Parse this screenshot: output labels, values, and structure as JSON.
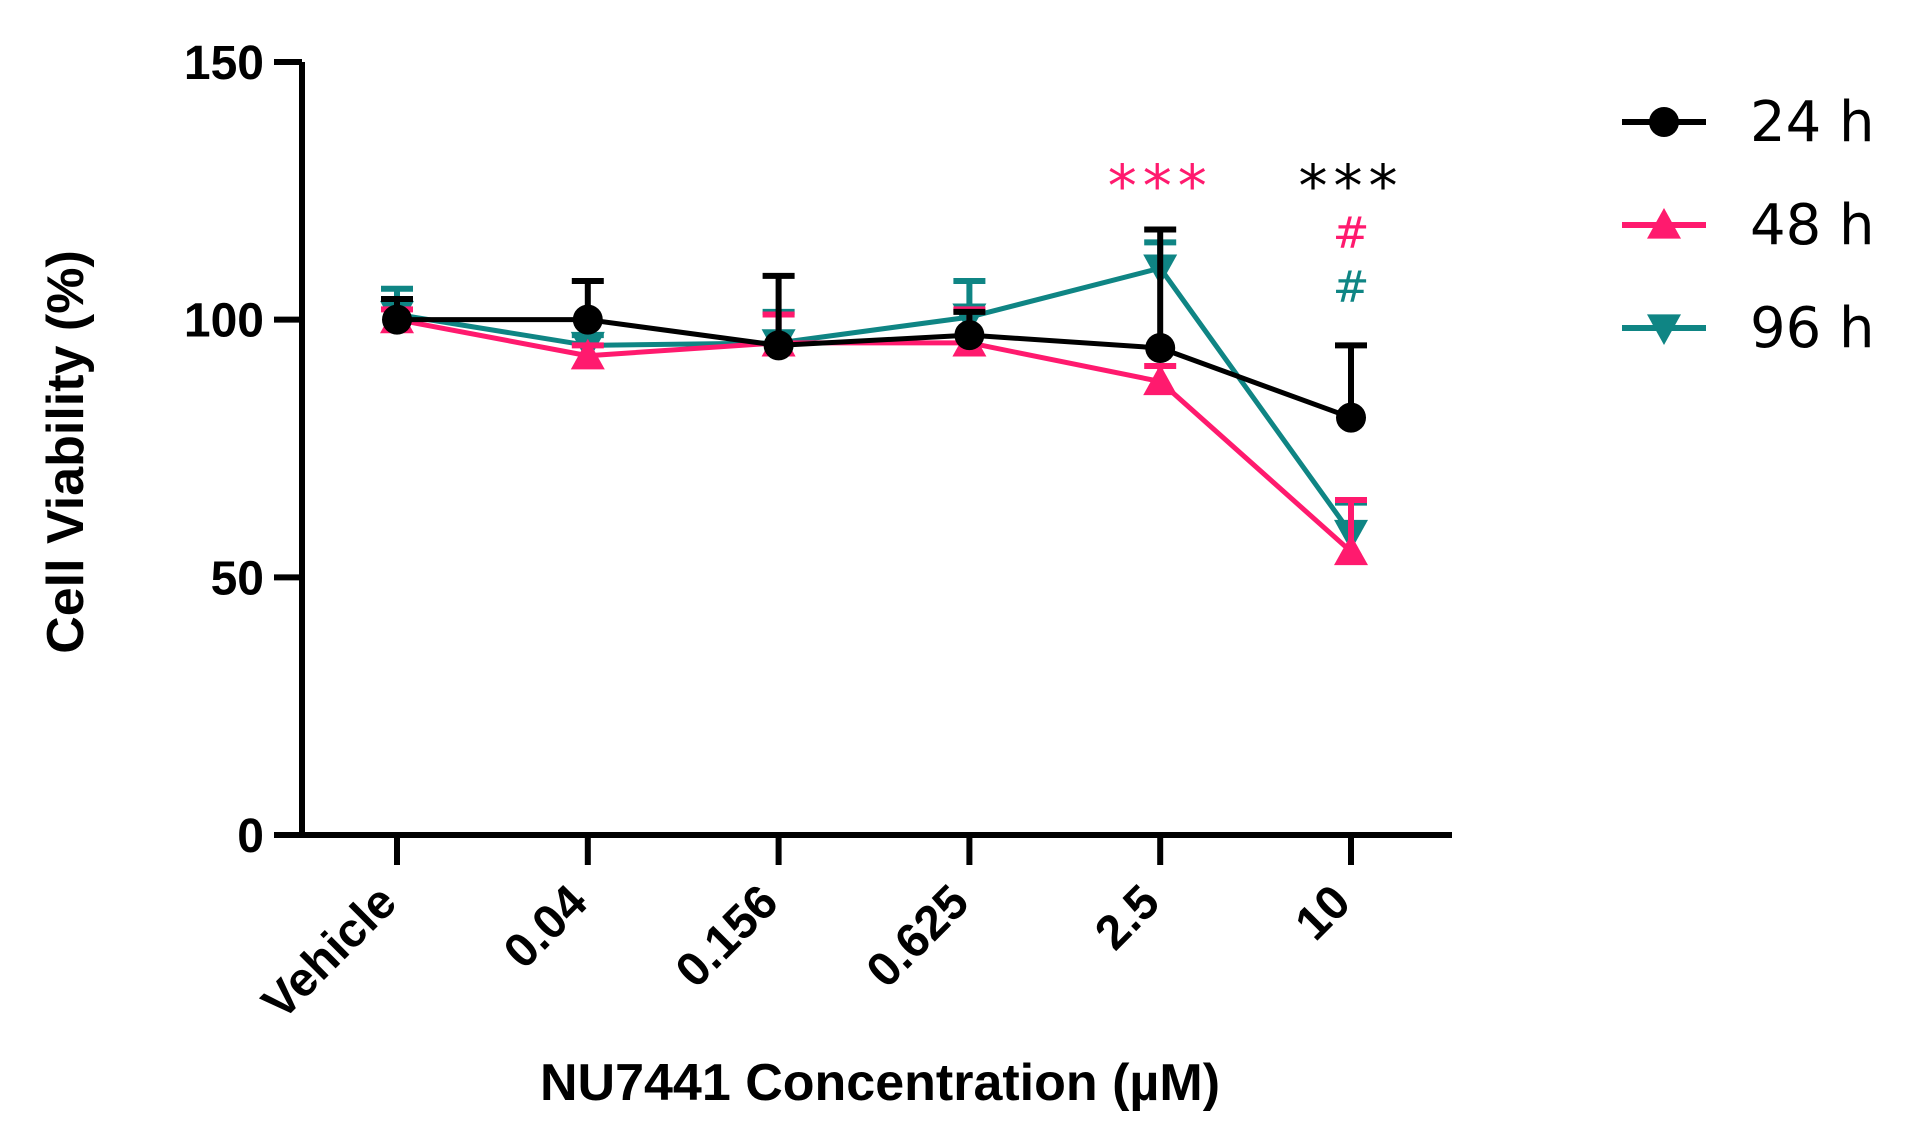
{
  "chart_data": {
    "type": "line",
    "title": "",
    "xlabel": "NU7441 Concentration (µM)",
    "ylabel": "Cell Viability (%)",
    "categories": [
      "Vehicle",
      "0.04",
      "0.156",
      "0.625",
      "2.5",
      "10"
    ],
    "ylim": [
      0,
      150
    ],
    "yticks": [
      "0",
      "50",
      "100",
      "150"
    ],
    "grid": false,
    "legend_position": "top-right",
    "series": [
      {
        "name": "24 h",
        "color": "#000000",
        "marker": "circle",
        "values": [
          100,
          100,
          95,
          97,
          94.5,
          81
        ],
        "errors": [
          4,
          7.5,
          13.5,
          4.5,
          23,
          14
        ]
      },
      {
        "name": "48 h",
        "color": "#ff1a6e",
        "marker": "triangle-up",
        "values": [
          100,
          93,
          95.5,
          95.5,
          88,
          55
        ],
        "errors": [
          2,
          2,
          5.5,
          6.5,
          3,
          10
        ]
      },
      {
        "name": "96 h",
        "color": "#0f8584",
        "marker": "triangle-down",
        "values": [
          101,
          95,
          95.5,
          100.5,
          110,
          58.5
        ],
        "errors": [
          5,
          2,
          6,
          7,
          5,
          6
        ]
      }
    ],
    "annotations": [
      {
        "category": "2.5",
        "text": "***",
        "color": "#ff1a6e",
        "row": 0
      },
      {
        "category": "10",
        "text": "***",
        "color": "#000000",
        "row": 0
      },
      {
        "category": "10",
        "text": "#",
        "color": "#ff1a6e",
        "row": 1
      },
      {
        "category": "10",
        "text": "#",
        "color": "#0f8584",
        "row": 2
      }
    ]
  }
}
